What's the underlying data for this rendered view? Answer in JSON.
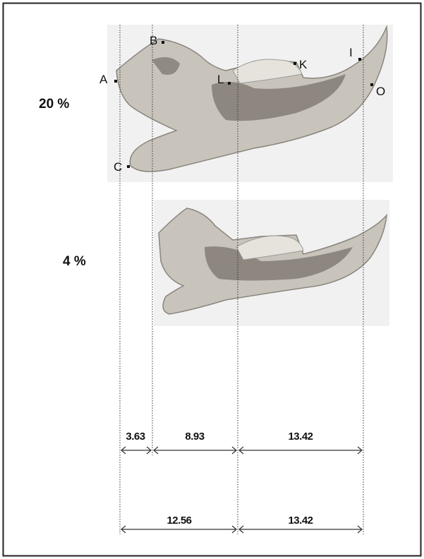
{
  "figure": {
    "rows": [
      {
        "label": "20 %"
      },
      {
        "label": "4 %"
      }
    ],
    "points": [
      {
        "label": "A"
      },
      {
        "label": "B"
      },
      {
        "label": "C"
      },
      {
        "label": "L"
      },
      {
        "label": "K"
      },
      {
        "label": "I"
      },
      {
        "label": "O"
      }
    ],
    "measurements": [
      [
        "3.63",
        "8.93",
        "13.42"
      ],
      [
        "12.56",
        "13.42"
      ]
    ]
  }
}
